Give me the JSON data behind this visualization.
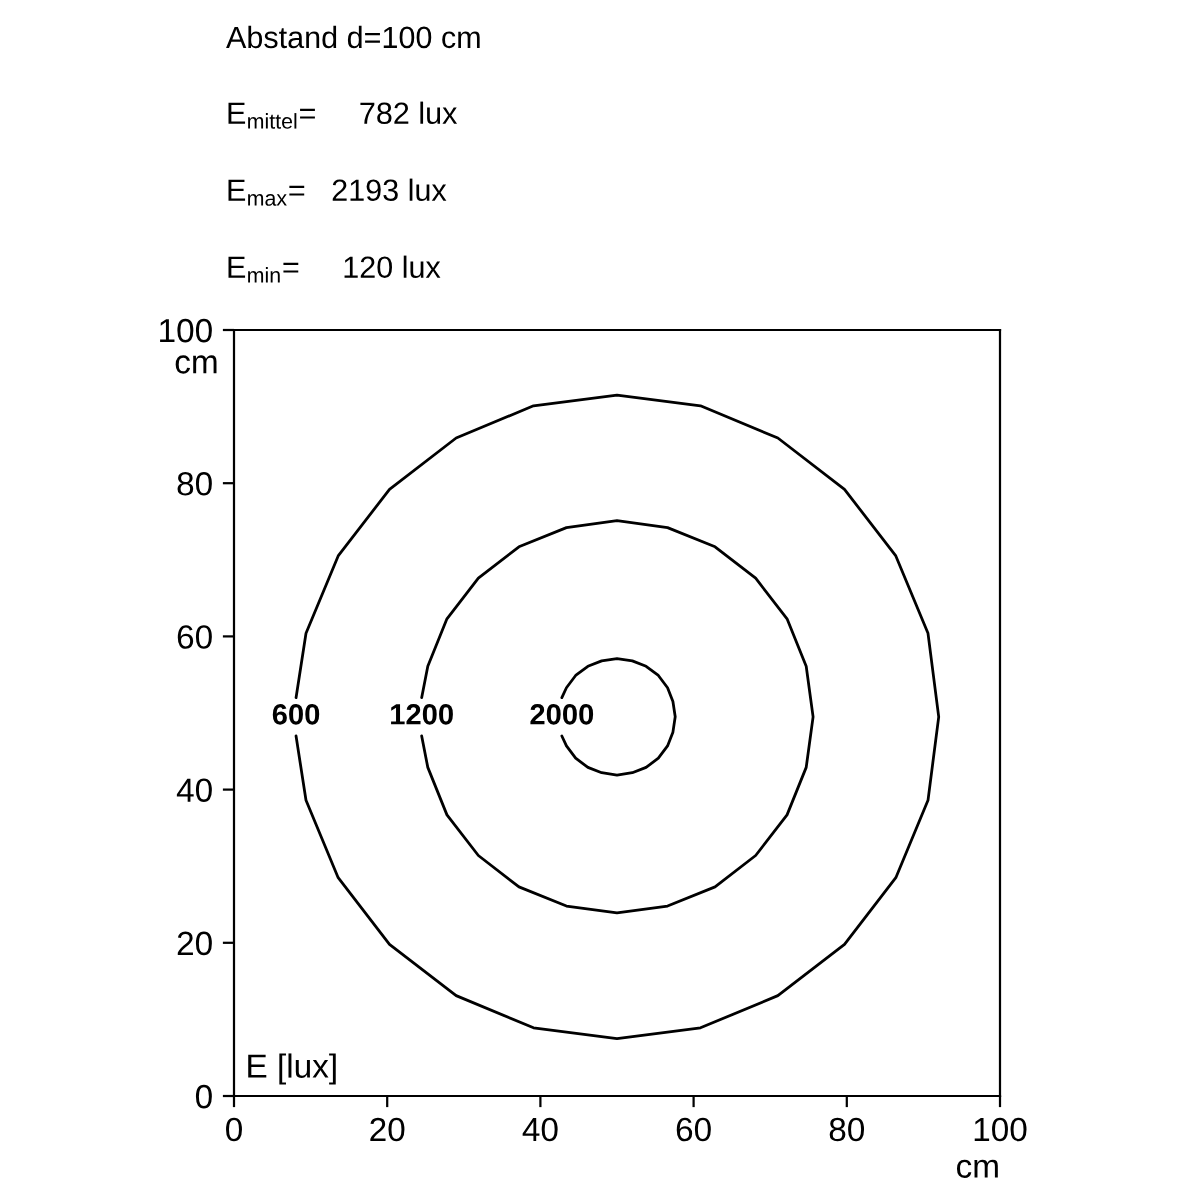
{
  "chart_data": {
    "type": "line",
    "title": "Abstand d=100 cm",
    "subtitle": "E$_{mittel}$=     782 lux\nE$_{max}$=   2193 lux\nE$_{min}$=     120 lux",
    "xlabel": "cm",
    "ylabel": "cm",
    "xlim": [
      0,
      100
    ],
    "ylim": [
      0,
      100
    ],
    "xticks": [
      0,
      20,
      40,
      60,
      80,
      100
    ],
    "yticks": [
      0,
      20,
      40,
      60,
      80,
      100
    ],
    "grid": false,
    "legend": false,
    "series": [
      {
        "color": "#000000",
        "x": [
          8.1,
          9.4,
          13.6,
          20.3,
          29.0,
          39.1,
          50,
          60.9,
          71.0,
          79.7,
          86.4,
          90.6,
          92,
          90.6,
          86.4,
          79.7,
          71.0,
          60.9,
          50,
          39.1,
          29.0,
          20.3,
          13.6,
          9.4,
          8.1
        ],
        "values": [
          47.0,
          38.6,
          28.5,
          19.8,
          13.1,
          8.9,
          7.5,
          8.9,
          13.1,
          19.8,
          28.5,
          38.6,
          49.5,
          60.4,
          70.5,
          79.2,
          85.9,
          90.1,
          91.5,
          90.1,
          85.9,
          79.2,
          70.5,
          60.4,
          52.0
        ]
      },
      {
        "color": "#000000",
        "x": [
          24.5,
          25.3,
          27.8,
          31.9,
          37.2,
          43.4,
          50,
          56.6,
          62.8,
          68.1,
          72.2,
          74.7,
          75.6,
          74.7,
          72.2,
          68.1,
          62.8,
          56.6,
          50,
          43.4,
          37.2,
          31.9,
          27.8,
          25.3,
          24.5
        ],
        "values": [
          47.0,
          42.9,
          36.7,
          31.4,
          27.3,
          24.8,
          23.9,
          24.8,
          27.3,
          31.4,
          36.7,
          42.9,
          49.5,
          56.1,
          62.3,
          67.6,
          71.7,
          74.2,
          75.1,
          74.2,
          71.7,
          67.6,
          62.3,
          56.1,
          52.0
        ]
      },
      {
        "color": "#000000",
        "x": [
          42.8,
          43.4,
          44.6,
          46.2,
          48.0,
          50,
          52.0,
          53.8,
          55.4,
          56.6,
          57.3,
          57.6,
          57.3,
          56.6,
          55.4,
          53.8,
          52.0,
          50,
          48.0,
          46.2,
          44.6,
          43.4,
          42.8
        ],
        "values": [
          47.0,
          45.7,
          44.1,
          42.9,
          42.2,
          41.9,
          42.2,
          42.9,
          44.1,
          45.7,
          47.5,
          49.5,
          51.5,
          53.3,
          54.9,
          56.1,
          56.8,
          57.1,
          56.8,
          56.1,
          54.9,
          53.3,
          52.0
        ]
      }
    ],
    "annotations": [
      "600",
      "1200",
      "2000",
      "E [lux]"
    ]
  }
}
